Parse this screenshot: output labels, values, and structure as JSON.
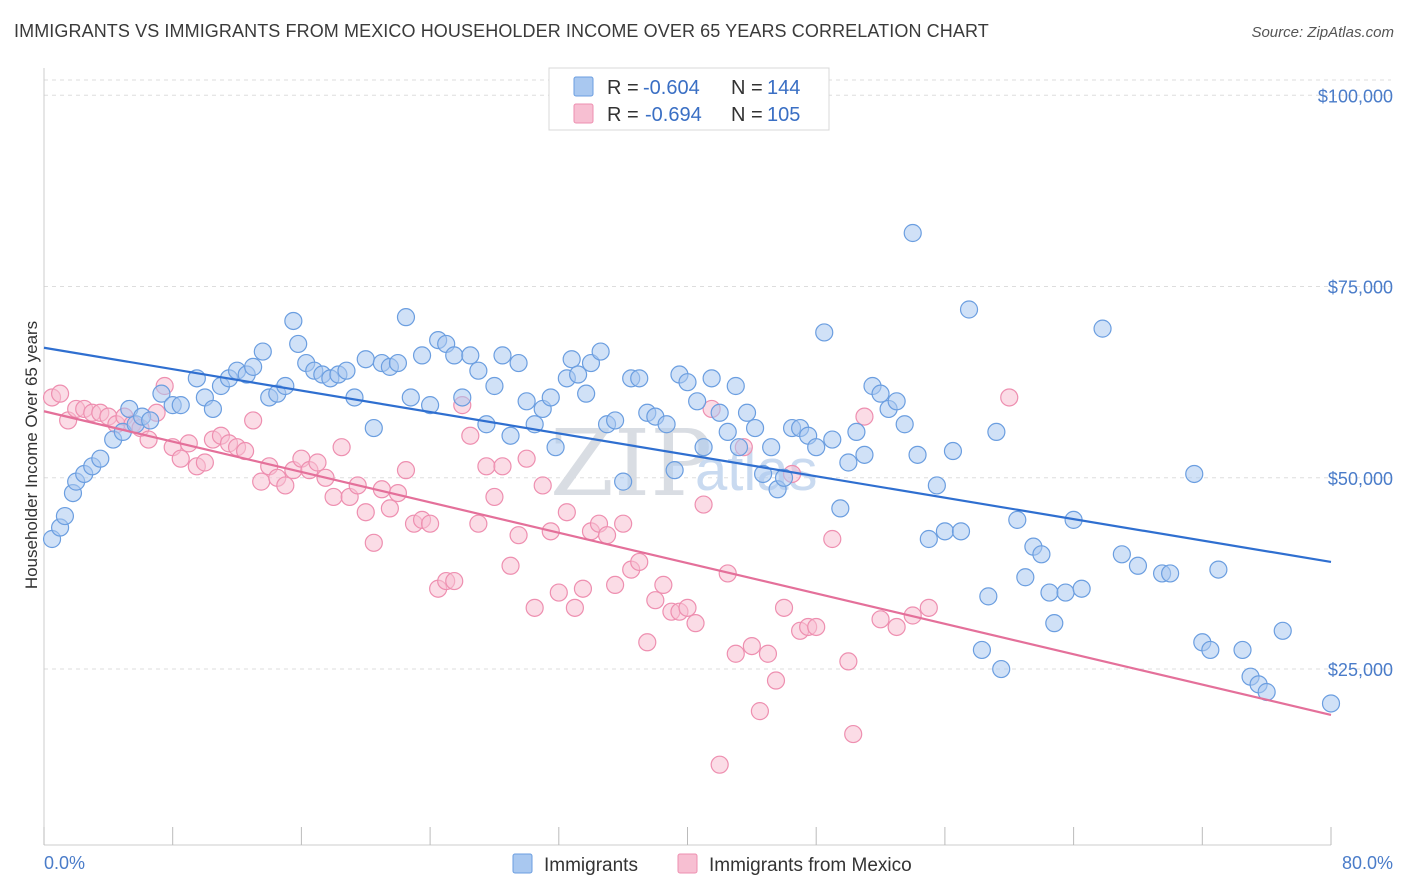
{
  "title": "IMMIGRANTS VS IMMIGRANTS FROM MEXICO HOUSEHOLDER INCOME OVER 65 YEARS CORRELATION CHART",
  "source": "Source: ZipAtlas.com",
  "watermark": {
    "zip": "ZIP",
    "atlas": "atlas"
  },
  "colors": {
    "immigrants_fill": "#a9c8f0",
    "immigrants_stroke": "#6b9ee0",
    "immigrants_line": "#2f6fd0",
    "mexico_fill": "#f7bfd2",
    "mexico_stroke": "#ee8fb0",
    "mexico_line": "#e4709a",
    "tick_text": "#4a7cc9",
    "grid": "#dddddd"
  },
  "legend": {
    "rows": [
      {
        "r_label": "R = ",
        "r_value": "-0.604",
        "n_label": "N = ",
        "n_value": "144"
      },
      {
        "r_label": "R = ",
        "r_value": "-0.694",
        "n_label": "N = ",
        "n_value": "105"
      }
    ]
  },
  "bottom_legend": [
    "Immigrants",
    "Immigrants from Mexico"
  ],
  "chart_data": {
    "type": "scatter",
    "title": "IMMIGRANTS VS IMMIGRANTS FROM MEXICO HOUSEHOLDER INCOME OVER 65 YEARS CORRELATION CHART",
    "xlabel": "",
    "ylabel": "Householder Income Over 65 years",
    "xlim": [
      0,
      80
    ],
    "ylim": [
      2000,
      102000
    ],
    "x_tick_labels": [
      "0.0%",
      "80.0%"
    ],
    "y_ticks": [
      25000,
      50000,
      75000,
      100000
    ],
    "y_tick_labels": [
      "$25,000",
      "$50,000",
      "$75,000",
      "$100,000"
    ],
    "grid": true,
    "legend_position": "top-center",
    "series": [
      {
        "name": "Immigrants",
        "r": -0.604,
        "n": 144,
        "trend": {
          "x": [
            0,
            80
          ],
          "y": [
            67000,
            39000
          ]
        },
        "points": [
          [
            0.5,
            42000
          ],
          [
            1.0,
            43500
          ],
          [
            1.3,
            45000
          ],
          [
            1.8,
            48000
          ],
          [
            2.0,
            49500
          ],
          [
            2.5,
            50500
          ],
          [
            3.0,
            51500
          ],
          [
            3.5,
            52500
          ],
          [
            4.3,
            55000
          ],
          [
            4.9,
            56000
          ],
          [
            5.3,
            59000
          ],
          [
            5.7,
            57000
          ],
          [
            6.1,
            58000
          ],
          [
            6.6,
            57500
          ],
          [
            7.3,
            61000
          ],
          [
            8.0,
            59500
          ],
          [
            8.5,
            59500
          ],
          [
            9.5,
            63000
          ],
          [
            10.0,
            60500
          ],
          [
            10.5,
            59000
          ],
          [
            11.0,
            62000
          ],
          [
            11.5,
            63000
          ],
          [
            12.0,
            64000
          ],
          [
            12.6,
            63500
          ],
          [
            13.0,
            64500
          ],
          [
            13.6,
            66500
          ],
          [
            14.0,
            60500
          ],
          [
            14.5,
            61000
          ],
          [
            15.0,
            62000
          ],
          [
            15.5,
            70500
          ],
          [
            15.8,
            67500
          ],
          [
            16.3,
            65000
          ],
          [
            16.8,
            64000
          ],
          [
            17.3,
            63500
          ],
          [
            17.8,
            63000
          ],
          [
            18.3,
            63500
          ],
          [
            18.8,
            64000
          ],
          [
            19.3,
            60500
          ],
          [
            20.0,
            65500
          ],
          [
            20.5,
            56500
          ],
          [
            21.0,
            65000
          ],
          [
            21.5,
            64500
          ],
          [
            22.0,
            65000
          ],
          [
            22.5,
            71000
          ],
          [
            22.8,
            60500
          ],
          [
            23.5,
            66000
          ],
          [
            24.0,
            59500
          ],
          [
            24.5,
            68000
          ],
          [
            25.0,
            67500
          ],
          [
            25.5,
            66000
          ],
          [
            26.0,
            60500
          ],
          [
            26.5,
            66000
          ],
          [
            27.0,
            64000
          ],
          [
            27.5,
            57000
          ],
          [
            28.0,
            62000
          ],
          [
            28.5,
            66000
          ],
          [
            29.0,
            55500
          ],
          [
            29.5,
            65000
          ],
          [
            30.0,
            60000
          ],
          [
            30.5,
            57000
          ],
          [
            31.0,
            59000
          ],
          [
            31.5,
            60500
          ],
          [
            31.8,
            54000
          ],
          [
            32.5,
            63000
          ],
          [
            32.8,
            65500
          ],
          [
            33.2,
            63500
          ],
          [
            33.7,
            61000
          ],
          [
            34.0,
            65000
          ],
          [
            34.6,
            66500
          ],
          [
            35.0,
            57000
          ],
          [
            35.5,
            57500
          ],
          [
            36.0,
            49500
          ],
          [
            36.5,
            63000
          ],
          [
            37.0,
            63000
          ],
          [
            37.5,
            58500
          ],
          [
            38.0,
            58000
          ],
          [
            38.7,
            57000
          ],
          [
            39.2,
            51000
          ],
          [
            39.5,
            63500
          ],
          [
            40.0,
            62500
          ],
          [
            40.6,
            60000
          ],
          [
            41.0,
            54000
          ],
          [
            41.5,
            63000
          ],
          [
            42.0,
            58500
          ],
          [
            42.5,
            56000
          ],
          [
            43.0,
            62000
          ],
          [
            43.2,
            54000
          ],
          [
            43.7,
            58500
          ],
          [
            44.2,
            56500
          ],
          [
            44.7,
            50500
          ],
          [
            45.2,
            54000
          ],
          [
            45.6,
            48500
          ],
          [
            46.0,
            50000
          ],
          [
            46.5,
            56500
          ],
          [
            47.0,
            56500
          ],
          [
            47.5,
            55500
          ],
          [
            48.0,
            54000
          ],
          [
            48.5,
            69000
          ],
          [
            49.0,
            55000
          ],
          [
            49.5,
            46000
          ],
          [
            50.0,
            52000
          ],
          [
            50.5,
            56000
          ],
          [
            51.0,
            53000
          ],
          [
            51.5,
            62000
          ],
          [
            52.0,
            61000
          ],
          [
            52.5,
            59000
          ],
          [
            53.0,
            60000
          ],
          [
            53.5,
            57000
          ],
          [
            54.0,
            82000
          ],
          [
            54.3,
            53000
          ],
          [
            55.0,
            42000
          ],
          [
            55.5,
            49000
          ],
          [
            56.0,
            43000
          ],
          [
            56.5,
            53500
          ],
          [
            57.0,
            43000
          ],
          [
            57.5,
            72000
          ],
          [
            58.3,
            27500
          ],
          [
            58.7,
            34500
          ],
          [
            59.2,
            56000
          ],
          [
            59.5,
            25000
          ],
          [
            60.5,
            44500
          ],
          [
            61.0,
            37000
          ],
          [
            61.5,
            41000
          ],
          [
            62.0,
            40000
          ],
          [
            62.5,
            35000
          ],
          [
            62.8,
            31000
          ],
          [
            63.5,
            35000
          ],
          [
            64.0,
            44500
          ],
          [
            64.5,
            35500
          ],
          [
            65.8,
            69500
          ],
          [
            67.0,
            40000
          ],
          [
            68.0,
            38500
          ],
          [
            69.5,
            37500
          ],
          [
            70.0,
            37500
          ],
          [
            71.5,
            50500
          ],
          [
            72.0,
            28500
          ],
          [
            72.5,
            27500
          ],
          [
            73.0,
            38000
          ],
          [
            74.5,
            27500
          ],
          [
            75.0,
            24000
          ],
          [
            75.5,
            23000
          ],
          [
            76.0,
            22000
          ],
          [
            77.0,
            30000
          ],
          [
            80.0,
            20500
          ]
        ]
      },
      {
        "name": "Immigrants from Mexico",
        "r": -0.694,
        "n": 105,
        "trend": {
          "x": [
            0,
            80
          ],
          "y": [
            58700,
            19000
          ]
        },
        "points": [
          [
            0.5,
            60500
          ],
          [
            1.0,
            61000
          ],
          [
            1.5,
            57500
          ],
          [
            2.0,
            59000
          ],
          [
            2.5,
            59000
          ],
          [
            3.0,
            58500
          ],
          [
            3.5,
            58500
          ],
          [
            4.0,
            58000
          ],
          [
            4.5,
            57000
          ],
          [
            5.0,
            58000
          ],
          [
            5.5,
            57000
          ],
          [
            6.0,
            56500
          ],
          [
            6.5,
            55000
          ],
          [
            7.0,
            58500
          ],
          [
            7.5,
            62000
          ],
          [
            8.0,
            54000
          ],
          [
            8.5,
            52500
          ],
          [
            9.0,
            54500
          ],
          [
            9.5,
            51500
          ],
          [
            10.0,
            52000
          ],
          [
            10.5,
            55000
          ],
          [
            11.0,
            55500
          ],
          [
            11.5,
            54500
          ],
          [
            12.0,
            54000
          ],
          [
            12.5,
            53500
          ],
          [
            13.0,
            57500
          ],
          [
            13.5,
            49500
          ],
          [
            14.0,
            51500
          ],
          [
            14.5,
            50000
          ],
          [
            15.0,
            49000
          ],
          [
            15.5,
            51000
          ],
          [
            16.0,
            52500
          ],
          [
            16.5,
            51000
          ],
          [
            17.0,
            52000
          ],
          [
            17.5,
            50000
          ],
          [
            18.0,
            47500
          ],
          [
            18.5,
            54000
          ],
          [
            19.0,
            47500
          ],
          [
            19.5,
            49000
          ],
          [
            20.0,
            45500
          ],
          [
            20.5,
            41500
          ],
          [
            21.0,
            48500
          ],
          [
            21.5,
            46000
          ],
          [
            22.0,
            48000
          ],
          [
            22.5,
            51000
          ],
          [
            23.0,
            44000
          ],
          [
            23.5,
            44500
          ],
          [
            24.0,
            44000
          ],
          [
            24.5,
            35500
          ],
          [
            25.0,
            36500
          ],
          [
            25.5,
            36500
          ],
          [
            26.0,
            59500
          ],
          [
            26.5,
            55500
          ],
          [
            27.0,
            44000
          ],
          [
            27.5,
            51500
          ],
          [
            28.0,
            47500
          ],
          [
            28.5,
            51500
          ],
          [
            29.0,
            38500
          ],
          [
            29.5,
            42500
          ],
          [
            30.0,
            52500
          ],
          [
            30.5,
            33000
          ],
          [
            31.0,
            49000
          ],
          [
            31.5,
            43000
          ],
          [
            32.0,
            35000
          ],
          [
            32.5,
            45500
          ],
          [
            33.0,
            33000
          ],
          [
            33.5,
            35500
          ],
          [
            34.0,
            43000
          ],
          [
            34.5,
            44000
          ],
          [
            35.0,
            42500
          ],
          [
            35.5,
            36000
          ],
          [
            36.0,
            44000
          ],
          [
            36.5,
            38000
          ],
          [
            37.0,
            39000
          ],
          [
            37.5,
            28500
          ],
          [
            38.0,
            34000
          ],
          [
            38.5,
            36000
          ],
          [
            39.0,
            32500
          ],
          [
            39.5,
            32500
          ],
          [
            40.0,
            33000
          ],
          [
            40.5,
            31000
          ],
          [
            41.0,
            46500
          ],
          [
            41.5,
            59000
          ],
          [
            42.0,
            12500
          ],
          [
            42.5,
            37500
          ],
          [
            43.0,
            27000
          ],
          [
            43.5,
            54000
          ],
          [
            44.0,
            28000
          ],
          [
            44.5,
            19500
          ],
          [
            45.0,
            27000
          ],
          [
            45.5,
            23500
          ],
          [
            46.0,
            33000
          ],
          [
            46.5,
            50500
          ],
          [
            47.0,
            30000
          ],
          [
            47.5,
            30500
          ],
          [
            48.0,
            30500
          ],
          [
            49.0,
            42000
          ],
          [
            50.0,
            26000
          ],
          [
            50.3,
            16500
          ],
          [
            51.0,
            58000
          ],
          [
            52.0,
            31500
          ],
          [
            53.0,
            30500
          ],
          [
            54.0,
            32000
          ],
          [
            55.0,
            33000
          ],
          [
            60.0,
            60500
          ]
        ]
      }
    ]
  }
}
